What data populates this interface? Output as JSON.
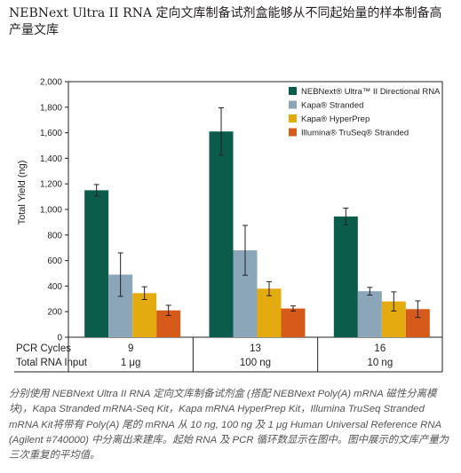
{
  "title": "NEBNext Ultra II RNA 定向文库制备试剂盒能够从不同起始量的样本制备高产量文库",
  "caption": "分别使用 NEBNext Ultra II RNA 定向文库制备试剂盒 (搭配 NEBNext Poly(A) mRNA 磁性分离模块)，Kapa Stranded mRNA-Seq Kit，Kapa mRNA HyperPrep Kit，Illumina TruSeq Stranded mRNA Kit将带有 Poly(A) 尾的 mRNA 从 10 ng, 100 ng 及 1 μg Human Universal Reference RNA (Agilent #740000) 中分离出来建库。起始 RNA 及 PCR 循环数显示在图中。图中展示的文库产量为三次重复的平均值。",
  "colors": {
    "nebnext": "#0b5c4a",
    "kapa_stranded": "#8aa6b8",
    "kapa_hyperprep": "#e3ab10",
    "illumina": "#d65a1a"
  },
  "chart_data": {
    "type": "bar",
    "ylabel": "Total Yield (ng)",
    "ylim": [
      0,
      2000
    ],
    "yticks": [
      0,
      200,
      400,
      600,
      800,
      1000,
      1200,
      1400,
      1600,
      1800,
      2000
    ],
    "ytick_labels": [
      "0",
      "200",
      "400",
      "600",
      "800",
      "1,000",
      "1,200",
      "1,400",
      "1,600",
      "1,800",
      "2,000"
    ],
    "grid": false,
    "legend_position": "top-right",
    "categories": [
      "1 μg",
      "100 ng",
      "10 ng"
    ],
    "series": [
      {
        "name": "NEBNext® Ultra™ II Directional RNA",
        "color": "#0b5c4a",
        "values": [
          1150,
          1610,
          945
        ],
        "errors": [
          45,
          185,
          65
        ]
      },
      {
        "name": "Kapa® Stranded",
        "color": "#8aa6b8",
        "values": [
          490,
          680,
          360
        ],
        "errors": [
          170,
          195,
          30
        ]
      },
      {
        "name": "Kapa® HyperPrep",
        "color": "#e3ab10",
        "values": [
          345,
          380,
          280
        ],
        "errors": [
          50,
          55,
          75
        ]
      },
      {
        "name": "Illumina® TruSeq® Stranded",
        "color": "#d65a1a",
        "values": [
          210,
          225,
          220
        ],
        "errors": [
          40,
          20,
          65
        ]
      }
    ],
    "table": {
      "rows": [
        {
          "label": "PCR Cycles",
          "values": [
            "9",
            "13",
            "16"
          ]
        },
        {
          "label": "Total RNA Input",
          "values": [
            "1 μg",
            "100 ng",
            "10 ng"
          ]
        }
      ]
    }
  }
}
